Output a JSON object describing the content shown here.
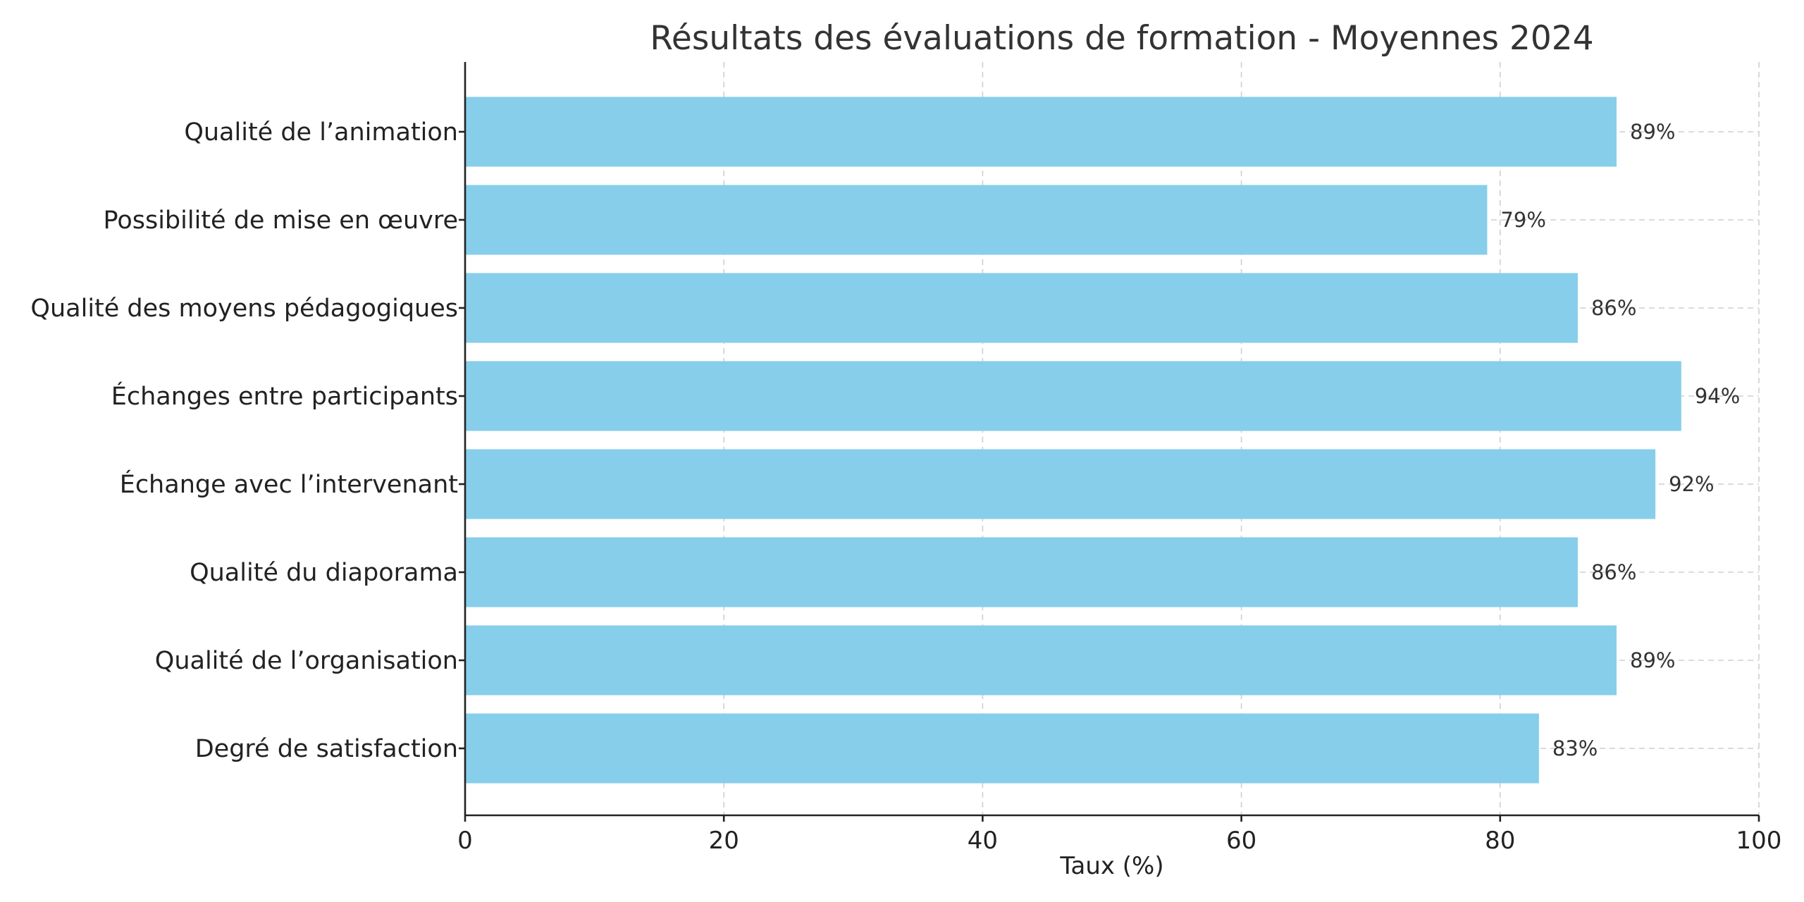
{
  "colors": {
    "bar": "#87CEEB",
    "grid": "#cfcfcf",
    "axis": "#222222",
    "title": "#333333"
  },
  "chart_data": {
    "type": "bar",
    "orientation": "horizontal",
    "title": "Résultats des évaluations de formation - Moyennes 2024",
    "xlabel": "Taux (%)",
    "ylabel": "",
    "xlim": [
      0,
      100
    ],
    "xticks": [
      0,
      20,
      40,
      60,
      80,
      100
    ],
    "grid": true,
    "categories": [
      "Qualité de l’animation",
      "Possibilité de mise en œuvre",
      "Qualité des moyens pédagogiques",
      "Échanges entre participants",
      "Échange avec l’intervenant",
      "Qualité du diaporama",
      "Qualité de l’organisation",
      "Degré de satisfaction"
    ],
    "values": [
      89,
      79,
      86,
      94,
      92,
      86,
      89,
      83
    ],
    "value_labels": [
      "89%",
      "79%",
      "86%",
      "94%",
      "92%",
      "86%",
      "89%",
      "83%"
    ]
  }
}
